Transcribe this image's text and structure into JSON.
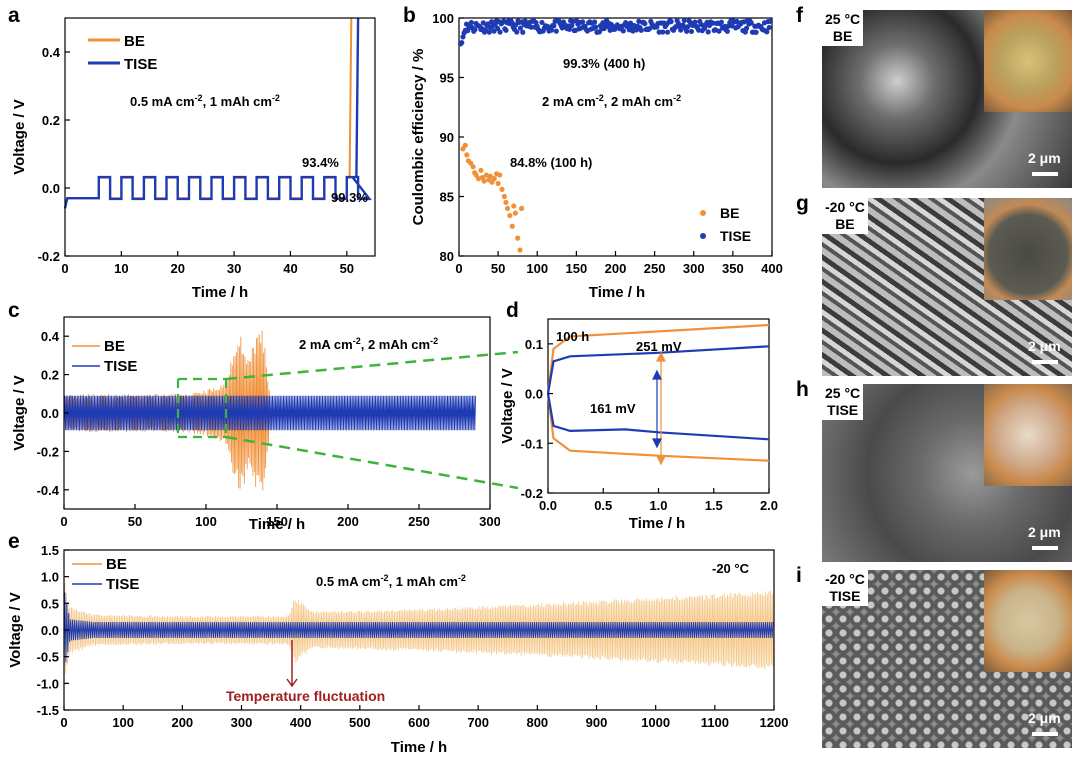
{
  "colors": {
    "be": "#f0913a",
    "tise": "#1f3bb3",
    "be_fill": "#f5c98c",
    "arrow": "#a02020",
    "zoom": "#3db53d"
  },
  "panels": {
    "a": {
      "letter": "a",
      "xlabel": "Time / h",
      "ylabel": "Voltage / V",
      "legend": [
        "BE",
        "TISE"
      ],
      "note": "0.5 mA cm",
      "note_sup1": "-2",
      "note_mid": ", 1 mAh cm",
      "note_sup2": "-2",
      "ann1": "93.4%",
      "ann2": "99.3%"
    },
    "b": {
      "letter": "b",
      "xlabel": "Time / h",
      "ylabel": "Coulombic efficiency / %",
      "legend": [
        "BE",
        "TISE"
      ],
      "note": "2 mA cm",
      "note_sup1": "-2",
      "note_mid": ", 2 mAh cm",
      "note_sup2": "-2",
      "ann_tise": "99.3% (400 h)",
      "ann_be": "84.8% (100 h)"
    },
    "c": {
      "letter": "c",
      "xlabel": "Time / h",
      "ylabel": "Voltage / V",
      "legend": [
        "BE",
        "TISE"
      ],
      "note": "2 mA cm",
      "note_sup1": "-2",
      "note_mid": ", 2 mAh cm",
      "note_sup2": "-2"
    },
    "d": {
      "letter": "d",
      "xlabel": "Time / h",
      "ylabel": "Voltage / V",
      "ann_time": "100 h",
      "ann_be": "251 mV",
      "ann_tise": "161 mV"
    },
    "e": {
      "letter": "e",
      "xlabel": "Time / h",
      "ylabel": "Voltage / V",
      "legend": [
        "BE",
        "TISE"
      ],
      "note": "0.5 mA cm",
      "note_sup1": "-2",
      "note_mid": ", 1 mAh cm",
      "note_sup2": "-2",
      "temp": "-20 °C",
      "fluct": "Temperature fluctuation"
    },
    "sem": [
      {
        "letter": "f",
        "line1": "25 °C",
        "line2": "BE",
        "scale": "2 μm"
      },
      {
        "letter": "g",
        "line1": "-20 °C",
        "line2": "BE",
        "scale": "2 μm"
      },
      {
        "letter": "h",
        "line1": "25 °C",
        "line2": "TISE",
        "scale": "2 μm"
      },
      {
        "letter": "i",
        "line1": "-20 °C",
        "line2": "TISE",
        "scale": "2 μm"
      }
    ]
  },
  "chart_data": [
    {
      "panel": "a",
      "type": "line",
      "xlim": [
        0,
        55
      ],
      "ylim": [
        -0.2,
        0.5
      ],
      "xticks": [
        0,
        10,
        20,
        30,
        40,
        50
      ],
      "yticks": [
        -0.2,
        0.0,
        0.2,
        0.4
      ],
      "ytick_labels": [
        "-0.2",
        "0.0",
        "0.2",
        "0.4"
      ],
      "series": [
        {
          "name": "BE",
          "cycle_start_h": 6,
          "cycle_end_h": 50,
          "period_h": 4,
          "amplitude_v": 0.03,
          "rise_at_h": 50.8
        },
        {
          "name": "TISE",
          "cycle_start_h": 6,
          "cycle_end_h": 51,
          "period_h": 4,
          "amplitude_v": 0.032,
          "rise_at_h": 52.0
        }
      ]
    },
    {
      "panel": "b",
      "type": "scatter",
      "xlim": [
        0,
        400
      ],
      "ylim": [
        80,
        100
      ],
      "xticks": [
        0,
        50,
        100,
        150,
        200,
        250,
        300,
        350,
        400
      ],
      "yticks": [
        80,
        85,
        90,
        95,
        100
      ],
      "series": [
        {
          "name": "BE",
          "x": [
            5,
            8,
            10,
            12,
            15,
            18,
            20,
            22,
            25,
            28,
            30,
            32,
            35,
            38,
            40,
            42,
            45,
            48,
            50,
            52,
            55,
            58,
            60,
            62,
            65,
            68,
            70,
            72,
            75,
            78,
            80
          ],
          "y": [
            89.0,
            89.3,
            88.5,
            88.0,
            87.8,
            87.5,
            87.0,
            86.8,
            86.5,
            87.2,
            86.6,
            86.3,
            86.8,
            86.4,
            86.7,
            86.2,
            86.5,
            86.9,
            86.1,
            86.8,
            85.6,
            85.0,
            84.5,
            84.0,
            83.4,
            82.5,
            84.2,
            83.6,
            81.5,
            80.5,
            84.0
          ]
        },
        {
          "name": "TISE",
          "x_start": 2,
          "x_end": 398,
          "mean": 99.3,
          "spread": 0.5,
          "count": 260
        }
      ]
    },
    {
      "panel": "c",
      "type": "line",
      "xlim": [
        0,
        300
      ],
      "ylim": [
        -0.5,
        0.5
      ],
      "xticks": [
        0,
        50,
        100,
        150,
        200,
        250,
        300
      ],
      "yticks": [
        -0.4,
        -0.2,
        0.0,
        0.2,
        0.4
      ],
      "ytick_labels": [
        "-0.4",
        "-0.2",
        "0.0",
        "0.2",
        "0.4"
      ],
      "series": [
        {
          "name": "BE",
          "x_end": 145,
          "envelope": [
            [
              0,
              0.1
            ],
            [
              80,
              0.1
            ],
            [
              100,
              0.12
            ],
            [
              115,
              0.18
            ],
            [
              120,
              0.35
            ],
            [
              125,
              0.42
            ],
            [
              130,
              0.3
            ],
            [
              135,
              0.4
            ],
            [
              140,
              0.45
            ],
            [
              145,
              0.1
            ]
          ]
        },
        {
          "name": "TISE",
          "x_end": 290,
          "envelope": [
            [
              0,
              0.09
            ],
            [
              290,
              0.09
            ]
          ]
        }
      ]
    },
    {
      "panel": "d",
      "type": "line",
      "xlim": [
        0,
        2
      ],
      "ylim": [
        -0.2,
        0.15
      ],
      "xticks": [
        0.0,
        0.5,
        1.0,
        1.5,
        2.0
      ],
      "yticks": [
        -0.2,
        -0.1,
        0.0,
        0.1
      ],
      "ytick_labels": [
        "-0.2",
        "-0.1",
        "0.0",
        "0.1"
      ],
      "series": [
        {
          "name": "BE",
          "upper": [
            [
              0,
              0.0
            ],
            [
              0.05,
              0.09
            ],
            [
              0.2,
              0.115
            ],
            [
              1.0,
              0.125
            ],
            [
              2.0,
              0.138
            ]
          ],
          "lower": [
            [
              0,
              0.0
            ],
            [
              0.05,
              -0.09
            ],
            [
              0.2,
              -0.115
            ],
            [
              1.0,
              -0.125
            ],
            [
              2.0,
              -0.135
            ]
          ]
        },
        {
          "name": "TISE",
          "upper": [
            [
              0,
              0.0
            ],
            [
              0.05,
              0.065
            ],
            [
              0.2,
              0.075
            ],
            [
              1.0,
              0.082
            ],
            [
              2.0,
              0.095
            ]
          ],
          "lower": [
            [
              0,
              0.0
            ],
            [
              0.05,
              -0.065
            ],
            [
              0.2,
              -0.075
            ],
            [
              0.7,
              -0.072
            ],
            [
              1.0,
              -0.078
            ],
            [
              2.0,
              -0.092
            ]
          ]
        }
      ]
    },
    {
      "panel": "e",
      "type": "line",
      "xlim": [
        0,
        1200
      ],
      "ylim": [
        -1.5,
        1.5
      ],
      "xticks": [
        0,
        100,
        200,
        300,
        400,
        500,
        600,
        700,
        800,
        900,
        1000,
        1100,
        1200
      ],
      "yticks": [
        -1.5,
        -1.0,
        -0.5,
        0.0,
        0.5,
        1.0,
        1.5
      ],
      "ytick_labels": [
        "-1.5",
        "-1.0",
        "-0.5",
        "0.0",
        "0.5",
        "1.0",
        "1.5"
      ],
      "series": [
        {
          "name": "BE",
          "envelope": [
            [
              0,
              1.0
            ],
            [
              10,
              0.45
            ],
            [
              50,
              0.3
            ],
            [
              200,
              0.27
            ],
            [
              380,
              0.28
            ],
            [
              390,
              0.62
            ],
            [
              420,
              0.35
            ],
            [
              600,
              0.4
            ],
            [
              800,
              0.5
            ],
            [
              1000,
              0.62
            ],
            [
              1200,
              0.75
            ]
          ]
        },
        {
          "name": "TISE",
          "envelope": [
            [
              0,
              0.8
            ],
            [
              10,
              0.2
            ],
            [
              50,
              0.15
            ],
            [
              1200,
              0.15
            ]
          ]
        }
      ]
    }
  ]
}
